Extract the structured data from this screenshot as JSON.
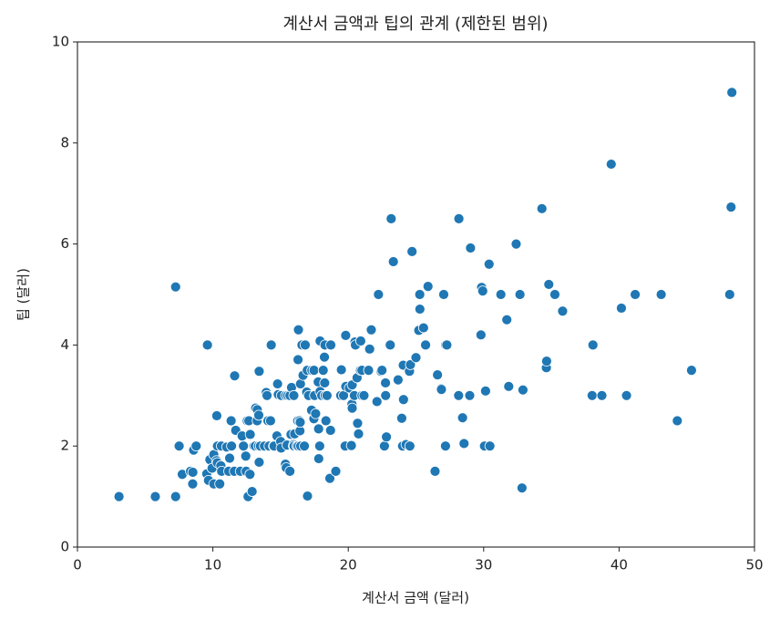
{
  "chart_data": {
    "type": "scatter",
    "title": "계산서 금액과 팁의 관계 (제한된 범위)",
    "x_label": "계산서 금액 (달러)",
    "y_label": "팁 (달러)",
    "color": "#1f77b4",
    "xlim": [
      0,
      50
    ],
    "xticks": [
      0,
      10,
      20,
      30,
      40,
      50
    ],
    "ylim": [
      0,
      10
    ],
    "yticks": [
      0,
      2,
      4,
      6,
      8,
      10
    ],
    "x": [
      3.07,
      5.75,
      7.25,
      7.25,
      7.51,
      7.74,
      8.35,
      8.51,
      8.52,
      8.58,
      8.77,
      9.55,
      9.6,
      9.68,
      9.78,
      9.94,
      10.07,
      10.07,
      10.27,
      10.29,
      10.33,
      10.34,
      10.51,
      10.59,
      10.63,
      10.65,
      11.02,
      11.17,
      11.24,
      11.35,
      11.38,
      11.59,
      11.61,
      11.69,
      12.03,
      12.16,
      12.26,
      12.43,
      12.46,
      12.54,
      12.6,
      12.66,
      12.74,
      12.76,
      12.9,
      13.0,
      13.03,
      13.13,
      13.16,
      13.27,
      13.28,
      13.37,
      13.39,
      13.42,
      13.42,
      13.51,
      13.81,
      13.94,
      14.0,
      14.07,
      14.15,
      14.26,
      14.31,
      14.48,
      14.52,
      14.73,
      14.78,
      14.83,
      15.01,
      15.04,
      15.06,
      15.36,
      15.38,
      15.42,
      15.48,
      15.53,
      15.69,
      15.69,
      15.77,
      15.81,
      15.95,
      15.98,
      15.98,
      16.0,
      16.04,
      16.21,
      16.27,
      16.29,
      16.31,
      16.32,
      16.4,
      16.43,
      16.45,
      16.47,
      16.49,
      16.58,
      16.66,
      16.76,
      16.82,
      16.93,
      16.97,
      16.99,
      17.07,
      17.29,
      17.31,
      17.46,
      17.47,
      17.51,
      17.59,
      17.78,
      17.81,
      17.82,
      17.89,
      17.92,
      17.92,
      18.04,
      18.15,
      18.24,
      18.26,
      18.28,
      18.29,
      18.35,
      18.43,
      18.64,
      18.69,
      18.71,
      19.08,
      19.44,
      19.49,
      19.65,
      19.77,
      19.81,
      19.82,
      20.08,
      20.23,
      20.27,
      20.29,
      20.29,
      20.45,
      20.49,
      20.53,
      20.65,
      20.69,
      20.76,
      20.9,
      20.92,
      21.01,
      21.01,
      21.16,
      21.5,
      21.58,
      21.7,
      22.12,
      22.23,
      22.42,
      22.49,
      22.67,
      22.75,
      22.76,
      22.82,
      23.1,
      23.17,
      23.33,
      23.68,
      23.95,
      24.01,
      24.06,
      24.08,
      24.27,
      24.52,
      24.55,
      24.59,
      24.71,
      25.0,
      25.21,
      25.28,
      25.29,
      25.56,
      25.71,
      25.89,
      26.41,
      26.59,
      26.86,
      26.88,
      27.05,
      27.18,
      27.2,
      27.28,
      28.15,
      28.17,
      28.44,
      28.55,
      28.97,
      29.03,
      29.8,
      29.85,
      29.93,
      30.06,
      30.14,
      30.4,
      30.46,
      31.27,
      31.71,
      31.85,
      32.4,
      32.68,
      32.83,
      32.9,
      34.3,
      34.63,
      34.65,
      34.81,
      35.26,
      35.83,
      38.01,
      38.07,
      38.73,
      39.42,
      40.17,
      40.55,
      41.19,
      43.11,
      44.3,
      45.35,
      48.17,
      48.27,
      48.33
    ],
    "values": [
      1.0,
      1.0,
      1.0,
      5.15,
      2.0,
      1.44,
      1.5,
      1.25,
      1.48,
      1.92,
      2.0,
      1.45,
      4.0,
      1.32,
      1.73,
      1.56,
      1.25,
      1.83,
      1.71,
      2.6,
      1.67,
      2.0,
      1.25,
      1.61,
      2.0,
      1.5,
      1.98,
      1.5,
      1.76,
      2.5,
      2.0,
      1.5,
      3.39,
      2.31,
      1.5,
      2.2,
      2.0,
      1.8,
      1.5,
      2.5,
      1.0,
      2.5,
      1.44,
      2.23,
      1.1,
      2.0,
      2.0,
      2.0,
      2.75,
      2.5,
      2.72,
      2.0,
      2.61,
      1.68,
      3.48,
      2.0,
      2.0,
      3.06,
      3.0,
      2.5,
      2.0,
      2.5,
      4.0,
      2.0,
      2.0,
      2.2,
      3.23,
      3.02,
      2.09,
      1.96,
      3.0,
      1.64,
      3.0,
      1.57,
      2.02,
      3.0,
      1.5,
      3.0,
      2.23,
      3.16,
      2.0,
      2.03,
      3.0,
      2.0,
      2.24,
      2.0,
      2.5,
      3.71,
      2.0,
      4.3,
      2.5,
      2.3,
      2.47,
      3.23,
      2.0,
      4.0,
      3.4,
      2.0,
      4.0,
      3.07,
      3.5,
      1.01,
      3.0,
      2.71,
      3.5,
      2.54,
      3.5,
      3.0,
      2.64,
      3.27,
      2.34,
      1.75,
      2.0,
      4.08,
      3.08,
      3.0,
      3.5,
      3.76,
      3.25,
      4.0,
      3.0,
      2.5,
      3.0,
      1.36,
      2.31,
      4.0,
      1.5,
      3.0,
      3.51,
      3.0,
      2.0,
      4.19,
      3.18,
      3.15,
      2.01,
      2.83,
      2.75,
      3.21,
      3.0,
      4.06,
      4.0,
      3.35,
      2.45,
      2.24,
      3.5,
      4.08,
      3.5,
      3.0,
      3.0,
      3.5,
      3.92,
      4.3,
      2.88,
      5.0,
      3.48,
      3.5,
      2.0,
      3.25,
      3.0,
      2.18,
      4.0,
      6.5,
      5.65,
      3.31,
      2.55,
      2.0,
      3.6,
      2.92,
      2.03,
      3.48,
      2.0,
      3.61,
      5.85,
      3.75,
      4.29,
      5.0,
      4.71,
      4.34,
      4.0,
      5.16,
      1.5,
      3.41,
      3.14,
      3.12,
      5.0,
      2.0,
      4.0,
      4.0,
      3.0,
      6.5,
      2.56,
      2.05,
      3.0,
      5.92,
      4.2,
      5.14,
      5.07,
      2.0,
      3.09,
      5.6,
      2.0,
      5.0,
      4.5,
      3.18,
      6.0,
      5.0,
      1.17,
      3.11,
      6.7,
      3.55,
      3.68,
      5.2,
      5.0,
      4.67,
      3.0,
      4.0,
      3.0,
      7.58,
      4.73,
      3.0,
      5.0,
      5.0,
      2.5,
      3.5,
      5.0,
      6.73,
      9.0
    ]
  }
}
